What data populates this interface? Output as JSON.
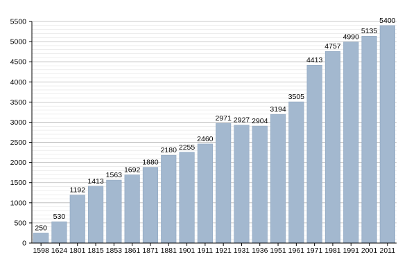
{
  "chart_data": {
    "type": "bar",
    "title": "",
    "xlabel": "",
    "ylabel": "",
    "categories": [
      "1598",
      "1624",
      "1801",
      "1815",
      "1853",
      "1861",
      "1871",
      "1881",
      "1901",
      "1911",
      "1921",
      "1931",
      "1936",
      "1951",
      "1961",
      "1971",
      "1981",
      "1991",
      "2001",
      "2011"
    ],
    "values": [
      250,
      530,
      1192,
      1413,
      1563,
      1692,
      1880,
      2180,
      2255,
      2460,
      2971,
      2927,
      2904,
      3194,
      3505,
      4413,
      4757,
      4990,
      5135,
      5400
    ],
    "ylim": [
      0,
      5500
    ],
    "yticks": [
      0,
      500,
      1000,
      1500,
      2000,
      2500,
      3000,
      3500,
      4000,
      4500,
      5000,
      5500
    ],
    "grid": true,
    "legend": "none",
    "colors": {
      "bar_fill": "#a3b8cf",
      "bar_stroke": "#8ea6c0",
      "grid_major": "#b8b8b8",
      "grid_minor": "#e2e2e2",
      "axis": "#000000"
    }
  }
}
